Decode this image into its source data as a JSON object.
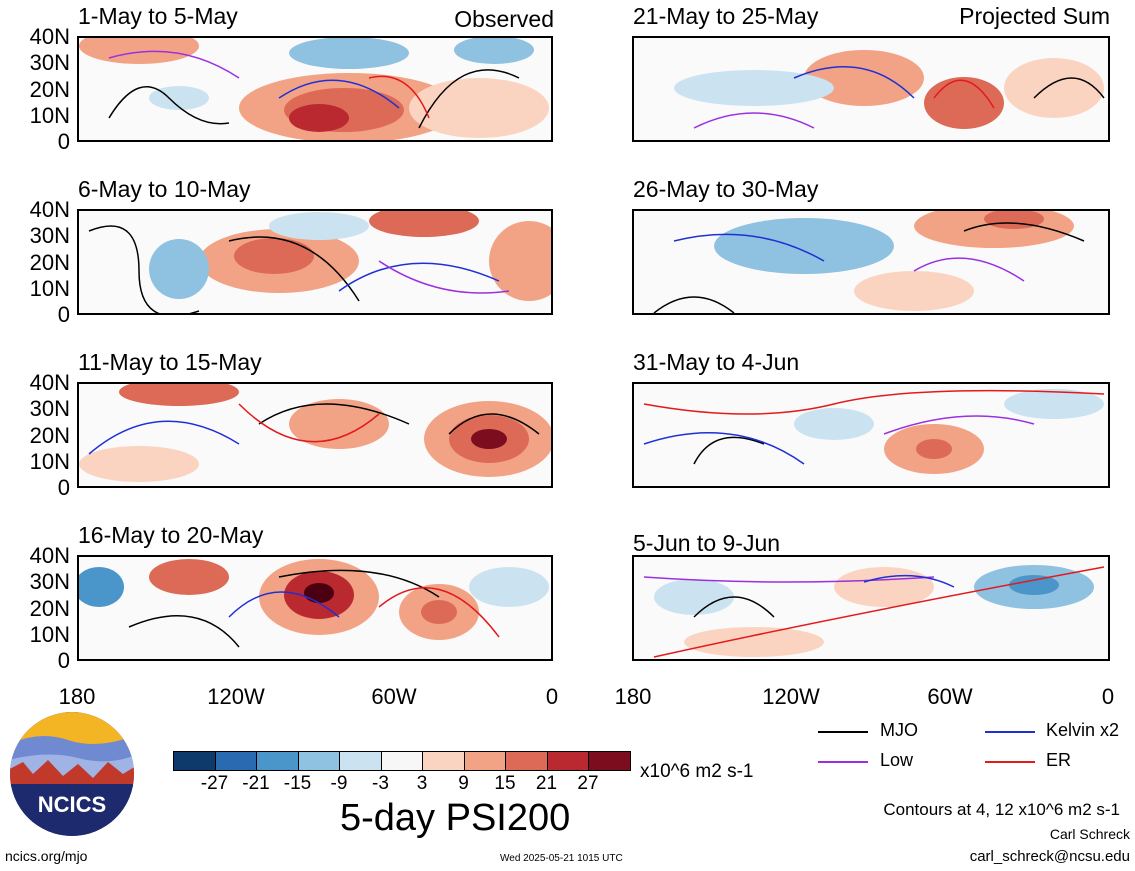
{
  "panels": [
    {
      "title": "1-May to 5-May",
      "label": "Observed"
    },
    {
      "title": "21-May to 25-May",
      "label": "Projected Sum"
    },
    {
      "title": "6-May to 10-May",
      "label": ""
    },
    {
      "title": "26-May to 30-May",
      "label": ""
    },
    {
      "title": "11-May to 15-May",
      "label": ""
    },
    {
      "title": "31-May to 4-Jun",
      "label": ""
    },
    {
      "title": "16-May to 20-May",
      "label": ""
    },
    {
      "title": "5-Jun to 9-Jun",
      "label": ""
    }
  ],
  "y_ticks": [
    "40N",
    "30N",
    "20N",
    "10N",
    "0"
  ],
  "x_ticks": [
    "180",
    "120W",
    "60W",
    "0"
  ],
  "colorbar": {
    "colors": [
      "#0d3a6b",
      "#2a6ab0",
      "#4a95c9",
      "#8fc1e0",
      "#cbe3f1",
      "#f7f7f7",
      "#fbd4c1",
      "#f2a385",
      "#dd6a56",
      "#b9292f",
      "#7b0d1f"
    ],
    "labels": [
      "-27",
      "-21",
      "-15",
      "-9",
      "-3",
      "3",
      "9",
      "15",
      "21",
      "27"
    ],
    "units": "x10^6 m2 s-1"
  },
  "legend": {
    "items": [
      {
        "name": "MJO",
        "color": "#000000"
      },
      {
        "name": "Kelvin x2",
        "color": "#1f2fd6"
      },
      {
        "name": "Low",
        "color": "#9b30e0"
      },
      {
        "name": "ER",
        "color": "#e31a1c"
      }
    ]
  },
  "footer": {
    "title": "5-day PSI200",
    "contours_note": "Contours at 4, 12 x10^6 m2 s-1",
    "author": "Carl Schreck",
    "email": "carl_schreck@ncsu.edu",
    "site": "ncics.org/mjo",
    "timestamp": "Wed 2025-05-21 1015 UTC",
    "logo_text": "NCICS"
  }
}
